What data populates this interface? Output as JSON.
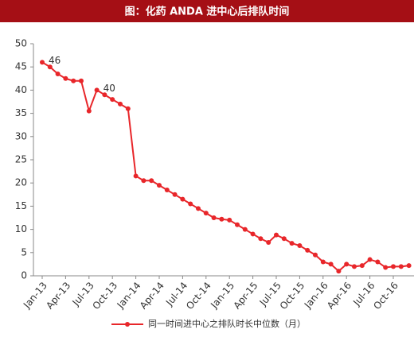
{
  "chart_data": {
    "type": "line",
    "title": "图：化药 ANDA 进中心后排队时间",
    "x": [
      "Jan-13",
      null,
      null,
      "Apr-13",
      null,
      null,
      "Jul-13",
      null,
      null,
      "Oct-13",
      null,
      null,
      "Jan-14",
      null,
      null,
      "Apr-14",
      null,
      null,
      "Jul-14",
      null,
      null,
      "Oct-14",
      null,
      null,
      "Jan-15",
      null,
      null,
      "Apr-15",
      null,
      null,
      "Jul-15",
      null,
      null,
      "Oct-15",
      null,
      null,
      "Jan-16",
      null,
      null,
      "Apr-16",
      null,
      null,
      "Jul-16",
      null,
      null,
      "Oct-16",
      null,
      null
    ],
    "series": [
      {
        "name": "同一时间进中心之排队时长中位数（月）",
        "color": "#e8262a",
        "values": [
          46,
          45,
          43.5,
          42.5,
          42,
          42,
          35.5,
          40,
          39,
          38,
          37,
          36,
          21.5,
          20.5,
          20.5,
          19.5,
          18.5,
          17.5,
          16.5,
          15.5,
          14.5,
          13.5,
          12.5,
          12.2,
          12,
          11,
          10,
          9,
          8,
          7.2,
          8.8,
          8,
          7,
          6.5,
          5.5,
          4.5,
          3,
          2.5,
          1,
          2.5,
          2,
          2.2,
          3.5,
          3,
          1.8,
          2,
          2,
          2.2
        ],
        "labeled_points": [
          0,
          7
        ]
      }
    ],
    "ylim": [
      0,
      50
    ],
    "yticks": [
      0,
      5,
      10,
      15,
      20,
      25,
      30,
      35,
      40,
      45,
      50
    ],
    "grid": false,
    "legend": "bottom"
  }
}
